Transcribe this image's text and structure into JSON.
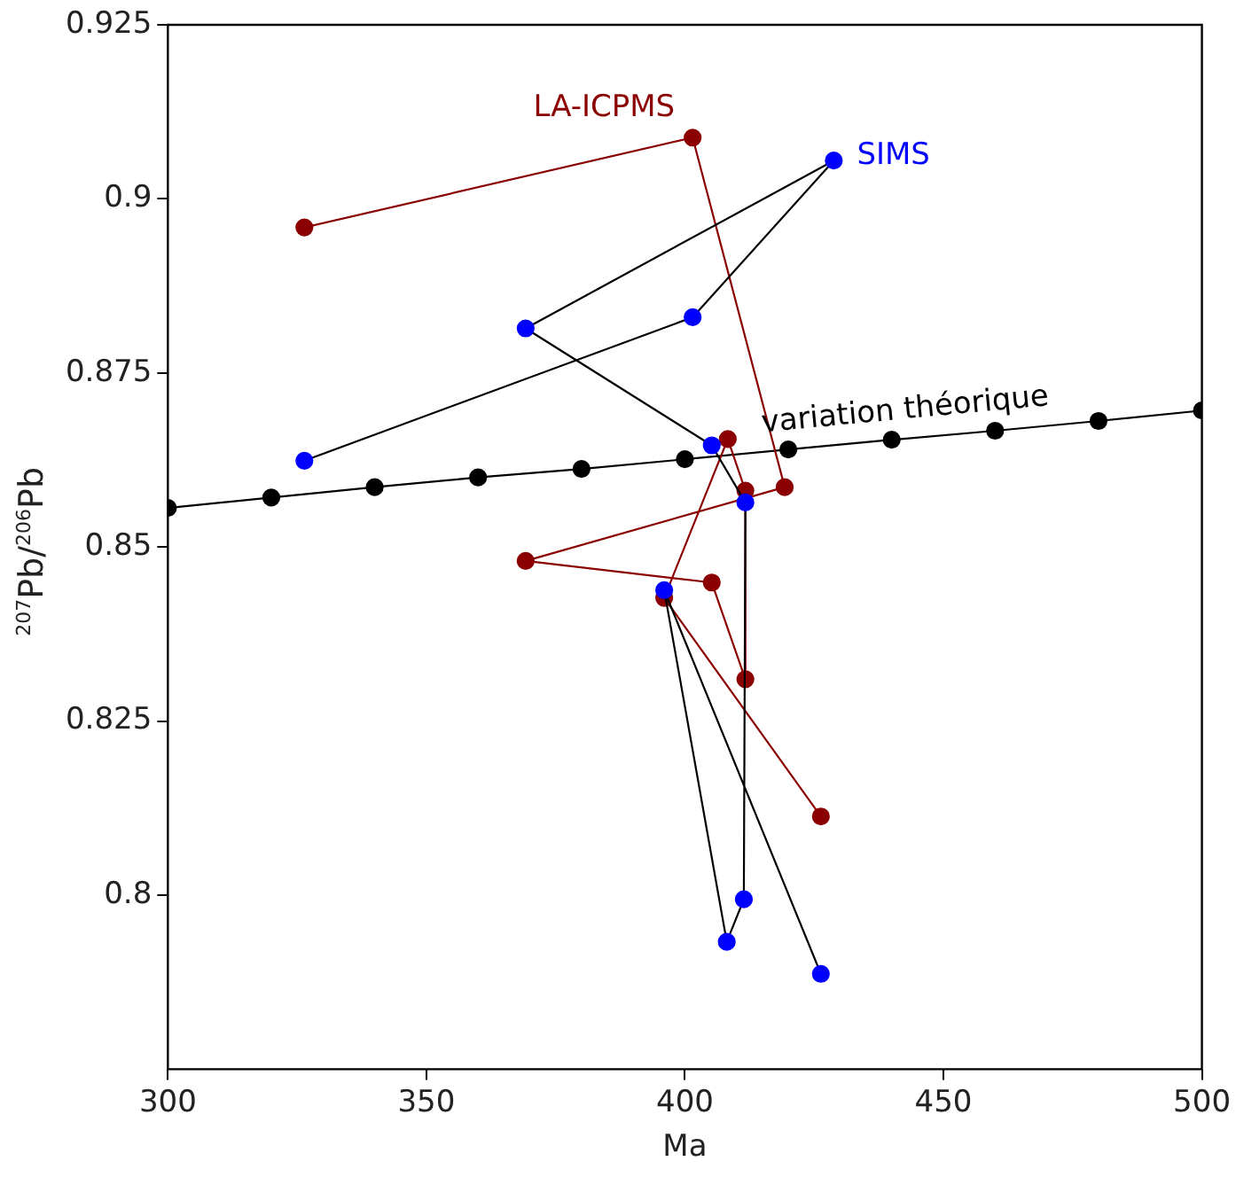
{
  "chart_data": {
    "type": "line",
    "xlabel": "Ma",
    "ylabel": "$^{207}$Pb/$^{206}$Pb",
    "xlim": [
      300,
      500
    ],
    "xticks": [
      300,
      350,
      400,
      450,
      500
    ],
    "ylim": [
      0.775,
      0.925
    ],
    "yticks": [
      0.8,
      0.825,
      0.85,
      0.875,
      0.9,
      0.925
    ],
    "grid": false,
    "legend": false,
    "marker": "circle",
    "line_style": "solid",
    "series": [
      {
        "name": "variation théorique",
        "color": "#000000",
        "x": [
          300,
          320,
          340,
          360,
          380,
          400,
          420,
          440,
          460,
          480,
          500
        ],
        "values": [
          0.8556,
          0.8571,
          0.8586,
          0.86,
          0.8612,
          0.8626,
          0.864,
          0.8654,
          0.8667,
          0.8681,
          0.8696
        ]
      },
      {
        "name": "LA-ICPMS",
        "color": "#8b0000",
        "x": [
          326.4,
          401.5,
          419.3,
          369.2,
          405.2,
          411.7,
          411.7,
          408.3,
          396.0,
          426.3
        ],
        "values": [
          0.8959,
          0.9088,
          0.8586,
          0.848,
          0.8449,
          0.831,
          0.8581,
          0.8655,
          0.8427,
          0.8113
        ]
      },
      {
        "name": "SIMS",
        "color": "#000000",
        "colors": [
          "#0000ff",
          "#0000ff",
          "#0000ff",
          "#0000ff",
          "#0000ff",
          "#0000ff",
          "#0000ff",
          "#0000ff",
          "#0000ff",
          "#0000ff"
        ],
        "x": [
          326.4,
          401.5,
          428.8,
          369.2,
          405.2,
          411.7,
          411.4,
          408.1,
          396.0,
          426.3
        ],
        "values": [
          0.8624,
          0.883,
          0.9055,
          0.8814,
          0.8646,
          0.8564,
          0.7994,
          0.7933,
          0.8438,
          0.7887
        ]
      }
    ]
  }
}
